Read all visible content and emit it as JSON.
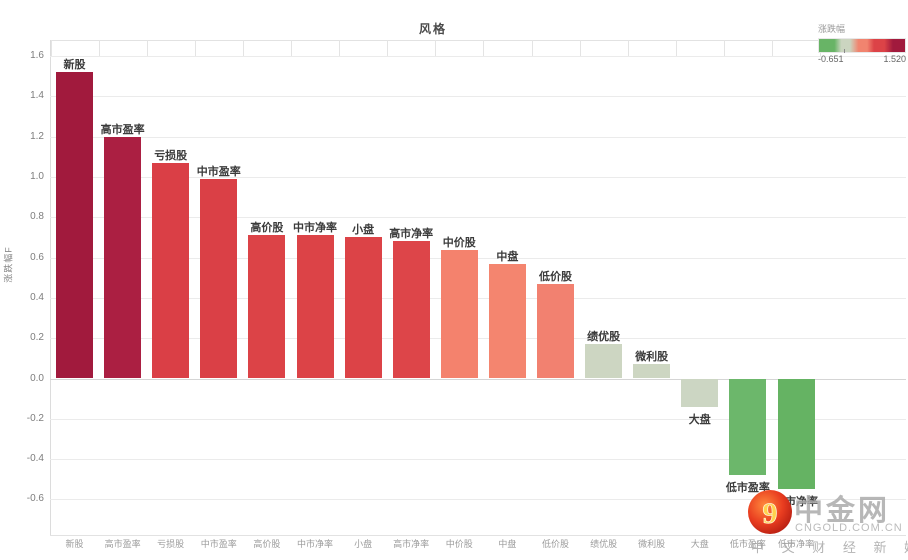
{
  "title": "风格",
  "legend": {
    "title": "涨跌幅",
    "min_label": "-0.651",
    "max_label": "1.520",
    "gradient_stops": [
      "#68b466",
      "#cbd5c0",
      "#f1846f",
      "#dc4347",
      "#a11a3d"
    ]
  },
  "y_axis": {
    "title": "涨跌幅F",
    "tick_labels": [
      "1.6",
      "1.4",
      "1.2",
      "1.0",
      "0.8",
      "0.6",
      "0.4",
      "0.2",
      "0.0",
      "-0.2",
      "-0.4",
      "-0.6"
    ]
  },
  "watermark": {
    "logo": "cngold-nine-swirl-logo",
    "brand": "中金网",
    "domain": "CNGOLD.COM.CN",
    "tagline": "中 文 财 经 新 媒 体"
  },
  "chart_data": {
    "type": "bar",
    "title": "风格",
    "xlabel": "",
    "ylabel": "涨跌幅",
    "ylim": [
      -0.78,
      1.68
    ],
    "grid": "horizontal every 0.2 from -0.6 to 1.6",
    "legend_position": "top-right",
    "categories": [
      "新股",
      "高市盈率",
      "亏损股",
      "中市盈率",
      "高价股",
      "中市净率",
      "小盘",
      "高市净率",
      "中价股",
      "中盘",
      "低价股",
      "绩优股",
      "微利股",
      "大盘",
      "低市盈率",
      "低市净率"
    ],
    "values": [
      1.52,
      1.2,
      1.07,
      0.99,
      0.71,
      0.71,
      0.7,
      0.68,
      0.64,
      0.57,
      0.47,
      0.17,
      0.07,
      -0.14,
      -0.48,
      -0.55
    ],
    "bar_colors": [
      "#a11a3d",
      "#ab1f42",
      "#da3f46",
      "#da4046",
      "#dc4347",
      "#dc4347",
      "#dc4347",
      "#dd4549",
      "#f4826d",
      "#f4856f",
      "#f28170",
      "#cdd6c2",
      "#cdd6c2",
      "#ccd6c3",
      "#6cb76b",
      "#65b363"
    ]
  }
}
